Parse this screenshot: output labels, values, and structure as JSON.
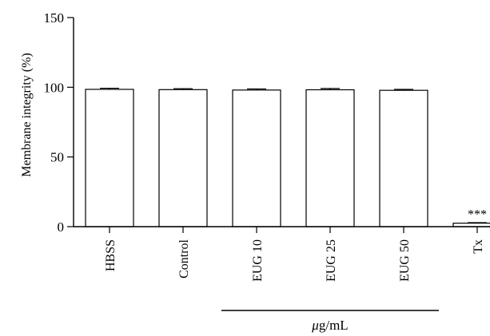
{
  "chart_data": {
    "type": "bar",
    "categories": [
      "HBSS",
      "Control",
      "EUG 10",
      "EUG 25",
      "EUG 50",
      "Tx"
    ],
    "values": [
      98.5,
      98.3,
      98.0,
      98.2,
      97.8,
      2.5
    ],
    "error": [
      0.8,
      0.7,
      0.8,
      0.9,
      0.7,
      0.4
    ],
    "annotations": [
      "",
      "",
      "",
      "",
      "",
      "***"
    ],
    "title": "",
    "xlabel": "",
    "ylabel": "Membrane integrity (%)",
    "ylim": [
      0,
      150
    ],
    "yticks": [
      0,
      50,
      100,
      150
    ],
    "group_label": "μg/mL",
    "group_categories": [
      "EUG 10",
      "EUG 25",
      "EUG 50"
    ],
    "grid": false,
    "bar_color": "#ffffff",
    "edge_color": "#000000"
  }
}
